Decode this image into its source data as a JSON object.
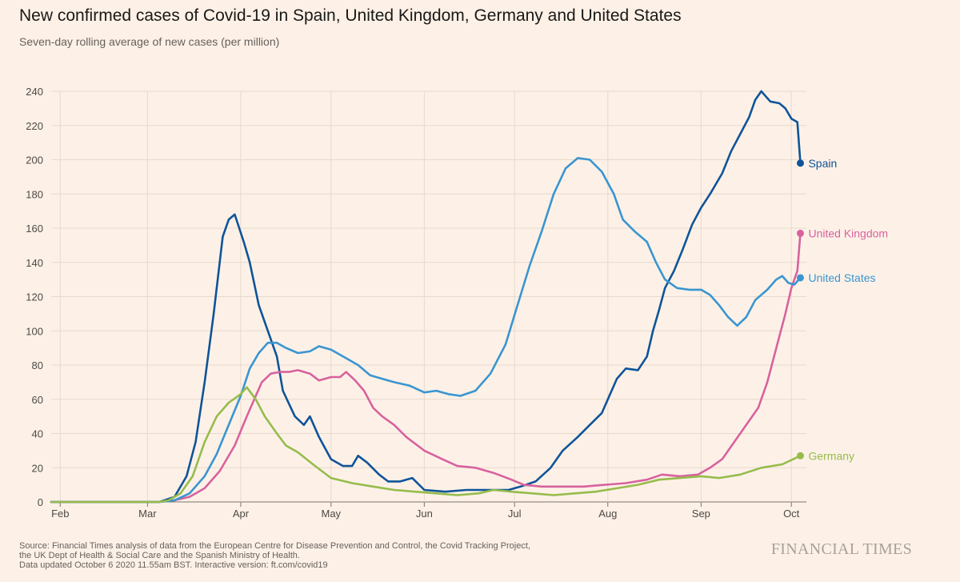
{
  "title": "New confirmed cases of Covid-19 in Spain, United Kingdom, Germany and United States",
  "subtitle": "Seven-day rolling average of new cases (per million)",
  "source_lines": [
    "Source: Financial Times analysis of data from the European Centre for Disease Prevention and Control, the Covid Tracking Project,",
    "the UK Dept of Health & Social Care and the Spanish Ministry of Health.",
    "Data updated October 6 2020 11.55am BST. Interactive version: ft.com/covid19"
  ],
  "brand": "FINANCIAL TIMES",
  "colors": {
    "background": "#fdf1e7",
    "grid": "#e6d9ce",
    "Spain": "#0f5499",
    "United Kingdom": "#d8629e",
    "United States": "#3a95d0",
    "Germany": "#96bc4c"
  },
  "chart_data": {
    "type": "line",
    "x_start": "2020-01-29",
    "x_end": "2020-10-06",
    "ylim": [
      0,
      240
    ],
    "yticks": [
      0,
      20,
      40,
      60,
      80,
      100,
      120,
      140,
      160,
      180,
      200,
      220,
      240
    ],
    "month_ticks": [
      {
        "date": "2020-02-01",
        "label": "Feb"
      },
      {
        "date": "2020-03-01",
        "label": "Mar"
      },
      {
        "date": "2020-04-01",
        "label": "Apr"
      },
      {
        "date": "2020-05-01",
        "label": "May"
      },
      {
        "date": "2020-06-01",
        "label": "Jun"
      },
      {
        "date": "2020-07-01",
        "label": "Jul"
      },
      {
        "date": "2020-08-01",
        "label": "Aug"
      },
      {
        "date": "2020-09-01",
        "label": "Sep"
      },
      {
        "date": "2020-10-01",
        "label": "Oct"
      }
    ],
    "grid": true,
    "legend": "direct labels at line ends (right)",
    "series": [
      {
        "name": "Spain",
        "points": [
          [
            "2020-01-29",
            0
          ],
          [
            "2020-03-05",
            0
          ],
          [
            "2020-03-10",
            3
          ],
          [
            "2020-03-14",
            15
          ],
          [
            "2020-03-17",
            35
          ],
          [
            "2020-03-20",
            70
          ],
          [
            "2020-03-23",
            110
          ],
          [
            "2020-03-26",
            155
          ],
          [
            "2020-03-28",
            165
          ],
          [
            "2020-03-30",
            168
          ],
          [
            "2020-04-02",
            152
          ],
          [
            "2020-04-04",
            140
          ],
          [
            "2020-04-07",
            115
          ],
          [
            "2020-04-10",
            100
          ],
          [
            "2020-04-13",
            85
          ],
          [
            "2020-04-15",
            65
          ],
          [
            "2020-04-19",
            50
          ],
          [
            "2020-04-22",
            45
          ],
          [
            "2020-04-24",
            50
          ],
          [
            "2020-04-27",
            38
          ],
          [
            "2020-05-01",
            25
          ],
          [
            "2020-05-05",
            21
          ],
          [
            "2020-05-08",
            21
          ],
          [
            "2020-05-10",
            27
          ],
          [
            "2020-05-13",
            23
          ],
          [
            "2020-05-17",
            16
          ],
          [
            "2020-05-20",
            12
          ],
          [
            "2020-05-24",
            12
          ],
          [
            "2020-05-28",
            14
          ],
          [
            "2020-06-01",
            7
          ],
          [
            "2020-06-08",
            6
          ],
          [
            "2020-06-15",
            7
          ],
          [
            "2020-06-22",
            7
          ],
          [
            "2020-06-29",
            7
          ],
          [
            "2020-07-03",
            9
          ],
          [
            "2020-07-08",
            12
          ],
          [
            "2020-07-13",
            20
          ],
          [
            "2020-07-17",
            30
          ],
          [
            "2020-07-22",
            38
          ],
          [
            "2020-07-26",
            45
          ],
          [
            "2020-07-30",
            52
          ],
          [
            "2020-08-01",
            60
          ],
          [
            "2020-08-04",
            72
          ],
          [
            "2020-08-07",
            78
          ],
          [
            "2020-08-11",
            77
          ],
          [
            "2020-08-14",
            85
          ],
          [
            "2020-08-16",
            100
          ],
          [
            "2020-08-18",
            112
          ],
          [
            "2020-08-20",
            125
          ],
          [
            "2020-08-23",
            135
          ],
          [
            "2020-08-26",
            148
          ],
          [
            "2020-08-29",
            162
          ],
          [
            "2020-09-01",
            172
          ],
          [
            "2020-09-04",
            180
          ],
          [
            "2020-09-08",
            192
          ],
          [
            "2020-09-11",
            205
          ],
          [
            "2020-09-14",
            215
          ],
          [
            "2020-09-17",
            225
          ],
          [
            "2020-09-19",
            235
          ],
          [
            "2020-09-21",
            240
          ],
          [
            "2020-09-24",
            234
          ],
          [
            "2020-09-27",
            233
          ],
          [
            "2020-09-29",
            230
          ],
          [
            "2020-10-01",
            224
          ],
          [
            "2020-10-03",
            222
          ],
          [
            "2020-10-04",
            198
          ]
        ]
      },
      {
        "name": "United Kingdom",
        "points": [
          [
            "2020-01-29",
            0
          ],
          [
            "2020-03-05",
            0
          ],
          [
            "2020-03-10",
            1
          ],
          [
            "2020-03-15",
            3
          ],
          [
            "2020-03-20",
            8
          ],
          [
            "2020-03-25",
            18
          ],
          [
            "2020-03-30",
            33
          ],
          [
            "2020-04-03",
            50
          ],
          [
            "2020-04-06",
            62
          ],
          [
            "2020-04-08",
            70
          ],
          [
            "2020-04-11",
            75
          ],
          [
            "2020-04-14",
            76
          ],
          [
            "2020-04-17",
            76
          ],
          [
            "2020-04-20",
            77
          ],
          [
            "2020-04-24",
            75
          ],
          [
            "2020-04-27",
            71
          ],
          [
            "2020-05-01",
            73
          ],
          [
            "2020-05-04",
            73
          ],
          [
            "2020-05-06",
            76
          ],
          [
            "2020-05-09",
            71
          ],
          [
            "2020-05-12",
            65
          ],
          [
            "2020-05-15",
            55
          ],
          [
            "2020-05-18",
            50
          ],
          [
            "2020-05-22",
            45
          ],
          [
            "2020-05-26",
            38
          ],
          [
            "2020-06-01",
            30
          ],
          [
            "2020-06-07",
            25
          ],
          [
            "2020-06-12",
            21
          ],
          [
            "2020-06-18",
            20
          ],
          [
            "2020-06-24",
            17
          ],
          [
            "2020-06-30",
            13
          ],
          [
            "2020-07-04",
            10
          ],
          [
            "2020-07-10",
            9
          ],
          [
            "2020-07-17",
            9
          ],
          [
            "2020-07-24",
            9
          ],
          [
            "2020-07-31",
            10
          ],
          [
            "2020-08-07",
            11
          ],
          [
            "2020-08-14",
            13
          ],
          [
            "2020-08-19",
            16
          ],
          [
            "2020-08-25",
            15
          ],
          [
            "2020-08-31",
            16
          ],
          [
            "2020-09-04",
            20
          ],
          [
            "2020-09-08",
            25
          ],
          [
            "2020-09-12",
            35
          ],
          [
            "2020-09-16",
            45
          ],
          [
            "2020-09-20",
            55
          ],
          [
            "2020-09-23",
            70
          ],
          [
            "2020-09-26",
            90
          ],
          [
            "2020-09-29",
            110
          ],
          [
            "2020-10-01",
            125
          ],
          [
            "2020-10-03",
            135
          ],
          [
            "2020-10-04",
            157
          ]
        ]
      },
      {
        "name": "United States",
        "points": [
          [
            "2020-01-29",
            0
          ],
          [
            "2020-03-05",
            0
          ],
          [
            "2020-03-10",
            1
          ],
          [
            "2020-03-15",
            5
          ],
          [
            "2020-03-20",
            15
          ],
          [
            "2020-03-24",
            28
          ],
          [
            "2020-03-28",
            45
          ],
          [
            "2020-04-01",
            62
          ],
          [
            "2020-04-04",
            78
          ],
          [
            "2020-04-07",
            87
          ],
          [
            "2020-04-10",
            93
          ],
          [
            "2020-04-13",
            93
          ],
          [
            "2020-04-16",
            90
          ],
          [
            "2020-04-20",
            87
          ],
          [
            "2020-04-24",
            88
          ],
          [
            "2020-04-27",
            91
          ],
          [
            "2020-05-01",
            89
          ],
          [
            "2020-05-05",
            85
          ],
          [
            "2020-05-10",
            80
          ],
          [
            "2020-05-14",
            74
          ],
          [
            "2020-05-18",
            72
          ],
          [
            "2020-05-22",
            70
          ],
          [
            "2020-05-27",
            68
          ],
          [
            "2020-06-01",
            64
          ],
          [
            "2020-06-05",
            65
          ],
          [
            "2020-06-09",
            63
          ],
          [
            "2020-06-13",
            62
          ],
          [
            "2020-06-18",
            65
          ],
          [
            "2020-06-23",
            75
          ],
          [
            "2020-06-28",
            92
          ],
          [
            "2020-07-02",
            115
          ],
          [
            "2020-07-06",
            138
          ],
          [
            "2020-07-10",
            158
          ],
          [
            "2020-07-14",
            180
          ],
          [
            "2020-07-18",
            195
          ],
          [
            "2020-07-22",
            201
          ],
          [
            "2020-07-26",
            200
          ],
          [
            "2020-07-30",
            193
          ],
          [
            "2020-08-03",
            180
          ],
          [
            "2020-08-06",
            165
          ],
          [
            "2020-08-10",
            158
          ],
          [
            "2020-08-14",
            152
          ],
          [
            "2020-08-17",
            140
          ],
          [
            "2020-08-20",
            130
          ],
          [
            "2020-08-24",
            125
          ],
          [
            "2020-08-28",
            124
          ],
          [
            "2020-09-01",
            124
          ],
          [
            "2020-09-04",
            121
          ],
          [
            "2020-09-07",
            115
          ],
          [
            "2020-09-10",
            108
          ],
          [
            "2020-09-13",
            103
          ],
          [
            "2020-09-16",
            108
          ],
          [
            "2020-09-19",
            118
          ],
          [
            "2020-09-23",
            124
          ],
          [
            "2020-09-26",
            130
          ],
          [
            "2020-09-28",
            132
          ],
          [
            "2020-09-30",
            128
          ],
          [
            "2020-10-02",
            127
          ],
          [
            "2020-10-04",
            131
          ]
        ]
      },
      {
        "name": "Germany",
        "points": [
          [
            "2020-01-29",
            0
          ],
          [
            "2020-03-05",
            0
          ],
          [
            "2020-03-08",
            1
          ],
          [
            "2020-03-12",
            5
          ],
          [
            "2020-03-16",
            15
          ],
          [
            "2020-03-20",
            35
          ],
          [
            "2020-03-24",
            50
          ],
          [
            "2020-03-28",
            58
          ],
          [
            "2020-04-01",
            63
          ],
          [
            "2020-04-03",
            67
          ],
          [
            "2020-04-06",
            60
          ],
          [
            "2020-04-09",
            50
          ],
          [
            "2020-04-13",
            40
          ],
          [
            "2020-04-16",
            33
          ],
          [
            "2020-04-20",
            29
          ],
          [
            "2020-04-25",
            22
          ],
          [
            "2020-05-01",
            14
          ],
          [
            "2020-05-08",
            11
          ],
          [
            "2020-05-15",
            9
          ],
          [
            "2020-05-22",
            7
          ],
          [
            "2020-05-29",
            6
          ],
          [
            "2020-06-05",
            5
          ],
          [
            "2020-06-12",
            4
          ],
          [
            "2020-06-19",
            5
          ],
          [
            "2020-06-24",
            7
          ],
          [
            "2020-06-30",
            6
          ],
          [
            "2020-07-07",
            5
          ],
          [
            "2020-07-14",
            4
          ],
          [
            "2020-07-21",
            5
          ],
          [
            "2020-07-28",
            6
          ],
          [
            "2020-08-04",
            8
          ],
          [
            "2020-08-11",
            10
          ],
          [
            "2020-08-18",
            13
          ],
          [
            "2020-08-25",
            14
          ],
          [
            "2020-09-01",
            15
          ],
          [
            "2020-09-07",
            14
          ],
          [
            "2020-09-14",
            16
          ],
          [
            "2020-09-21",
            20
          ],
          [
            "2020-09-28",
            22
          ],
          [
            "2020-10-04",
            27
          ]
        ]
      }
    ]
  }
}
